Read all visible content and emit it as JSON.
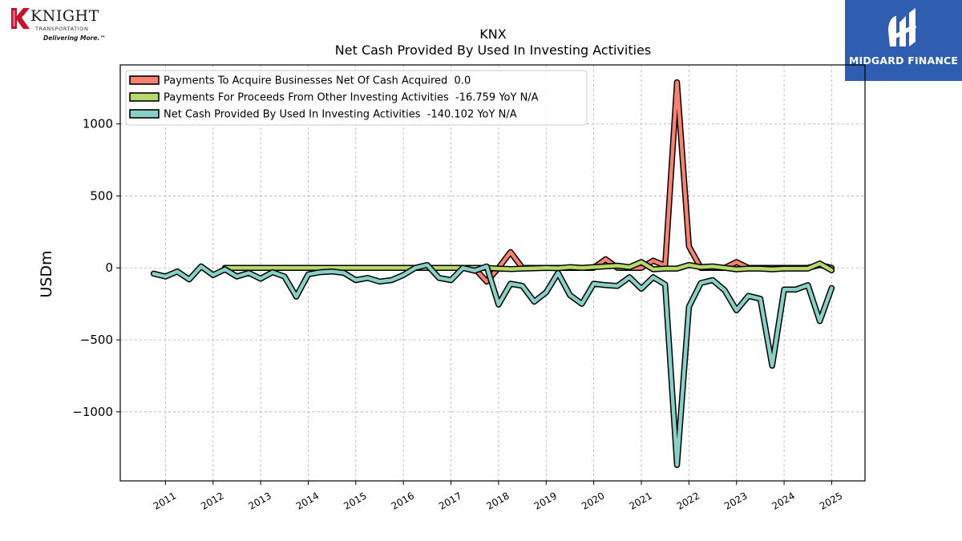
{
  "logos": {
    "left": {
      "name": "KNIGHT",
      "subtitle": "TRANSPORTATION",
      "tagline": "Delivering More.™"
    },
    "right": {
      "name": "MIDGARD FINANCE"
    }
  },
  "colors": {
    "payments_businesses": "#fa8072",
    "payments_other": "#b5d96b",
    "net_cash": "#88d0c5",
    "outline": "#000000",
    "grid": "#b0b0b0"
  },
  "chart_data": {
    "type": "line",
    "title": "KNX",
    "subtitle": "Net Cash Provided By Used In Investing Activities",
    "xlabel": "",
    "ylabel": "USDm",
    "xlim": [
      2010.05,
      2025.7
    ],
    "ylim": [
      -1480,
      1410
    ],
    "x_ticks": [
      "2011",
      "2012",
      "2013",
      "2014",
      "2015",
      "2016",
      "2017",
      "2018",
      "2019",
      "2020",
      "2021",
      "2022",
      "2023",
      "2024",
      "2025"
    ],
    "y_ticks": [
      1000,
      500,
      0,
      -500,
      -1000
    ],
    "y_tick_labels": [
      "1000",
      "500",
      "0",
      "−500",
      "−1000"
    ],
    "grid": true,
    "legend_position": "top-left",
    "series": [
      {
        "name": "Payments To Acquire Businesses Net Of Cash Acquired",
        "legend_label": "Payments To Acquire Businesses Net Of Cash Acquired  0.0",
        "color": "#fa8072",
        "x": [
          2012.25,
          2012.5,
          2012.75,
          2013.0,
          2013.25,
          2013.5,
          2013.75,
          2014.0,
          2014.25,
          2014.5,
          2014.75,
          2015.0,
          2015.25,
          2015.5,
          2015.75,
          2016.0,
          2016.25,
          2016.5,
          2016.75,
          2017.0,
          2017.25,
          2017.5,
          2017.75,
          2018.0,
          2018.25,
          2018.5,
          2018.75,
          2019.0,
          2019.25,
          2019.5,
          2019.75,
          2020.0,
          2020.25,
          2020.5,
          2020.75,
          2021.0,
          2021.25,
          2021.5,
          2021.75,
          2022.0,
          2022.25,
          2022.5,
          2022.75,
          2023.0,
          2023.25,
          2023.5,
          2023.75,
          2024.0,
          2024.25,
          2024.5,
          2024.75,
          2025.0
        ],
        "values": [
          0,
          0,
          0,
          0,
          0,
          0,
          0,
          0,
          0,
          0,
          0,
          0,
          0,
          0,
          0,
          0,
          0,
          0,
          0,
          0,
          0,
          -5,
          -95,
          0,
          110,
          0,
          0,
          0,
          0,
          0,
          0,
          0,
          60,
          0,
          0,
          0,
          50,
          15,
          1290,
          150,
          0,
          0,
          0,
          40,
          0,
          0,
          0,
          0,
          0,
          0,
          20,
          0
        ]
      },
      {
        "name": "Payments For Proceeds From Other Investing Activities",
        "legend_label": "Payments For Proceeds From Other Investing Activities  -16.759 YoY N/A",
        "color": "#b5d96b",
        "x": [
          2012.25,
          2012.5,
          2012.75,
          2013.0,
          2013.25,
          2013.5,
          2013.75,
          2014.0,
          2014.25,
          2014.5,
          2014.75,
          2015.0,
          2015.25,
          2015.5,
          2015.75,
          2016.0,
          2016.25,
          2016.5,
          2016.75,
          2017.0,
          2017.25,
          2017.5,
          2017.75,
          2018.0,
          2018.25,
          2018.5,
          2018.75,
          2019.0,
          2019.25,
          2019.5,
          2019.75,
          2020.0,
          2020.25,
          2020.5,
          2020.75,
          2021.0,
          2021.25,
          2021.5,
          2021.75,
          2022.0,
          2022.25,
          2022.5,
          2022.75,
          2023.0,
          2023.25,
          2023.5,
          2023.75,
          2024.0,
          2024.25,
          2024.5,
          2024.75,
          2025.0
        ],
        "values": [
          0,
          0,
          0,
          0,
          0,
          0,
          0,
          0,
          0,
          0,
          0,
          0,
          0,
          0,
          0,
          0,
          0,
          0,
          0,
          0,
          0,
          0,
          0,
          -5,
          -8,
          -5,
          -3,
          0,
          -2,
          5,
          0,
          5,
          10,
          15,
          5,
          40,
          -10,
          -5,
          -5,
          20,
          5,
          10,
          0,
          -10,
          -5,
          -5,
          -10,
          -5,
          -5,
          -5,
          30,
          -17
        ]
      },
      {
        "name": "Net Cash Provided By Used In Investing Activities",
        "legend_label": "Net Cash Provided By Used In Investing Activities  -140.102 YoY N/A",
        "color": "#88d0c5",
        "x": [
          2010.75,
          2011.0,
          2011.25,
          2011.5,
          2011.75,
          2012.0,
          2012.25,
          2012.5,
          2012.75,
          2013.0,
          2013.25,
          2013.5,
          2013.75,
          2014.0,
          2014.25,
          2014.5,
          2014.75,
          2015.0,
          2015.25,
          2015.5,
          2015.75,
          2016.0,
          2016.25,
          2016.5,
          2016.75,
          2017.0,
          2017.25,
          2017.5,
          2017.75,
          2018.0,
          2018.25,
          2018.5,
          2018.75,
          2019.0,
          2019.25,
          2019.5,
          2019.75,
          2020.0,
          2020.25,
          2020.5,
          2020.75,
          2021.0,
          2021.25,
          2021.5,
          2021.75,
          2022.0,
          2022.25,
          2022.5,
          2022.75,
          2023.0,
          2023.25,
          2023.5,
          2023.75,
          2024.0,
          2024.25,
          2024.5,
          2024.75,
          2025.0
        ],
        "values": [
          -40,
          -60,
          -25,
          -80,
          10,
          -50,
          -10,
          -60,
          -35,
          -75,
          -30,
          -60,
          -200,
          -45,
          -30,
          -25,
          -35,
          -85,
          -70,
          -95,
          -85,
          -50,
          0,
          20,
          -70,
          -85,
          0,
          -20,
          10,
          -255,
          -110,
          -125,
          -235,
          -170,
          -35,
          -190,
          -250,
          -110,
          -120,
          -125,
          -65,
          -145,
          -65,
          -115,
          -1370,
          -270,
          -105,
          -85,
          -155,
          -295,
          -195,
          -215,
          -680,
          -150,
          -150,
          -120,
          -370,
          -140
        ]
      }
    ]
  }
}
